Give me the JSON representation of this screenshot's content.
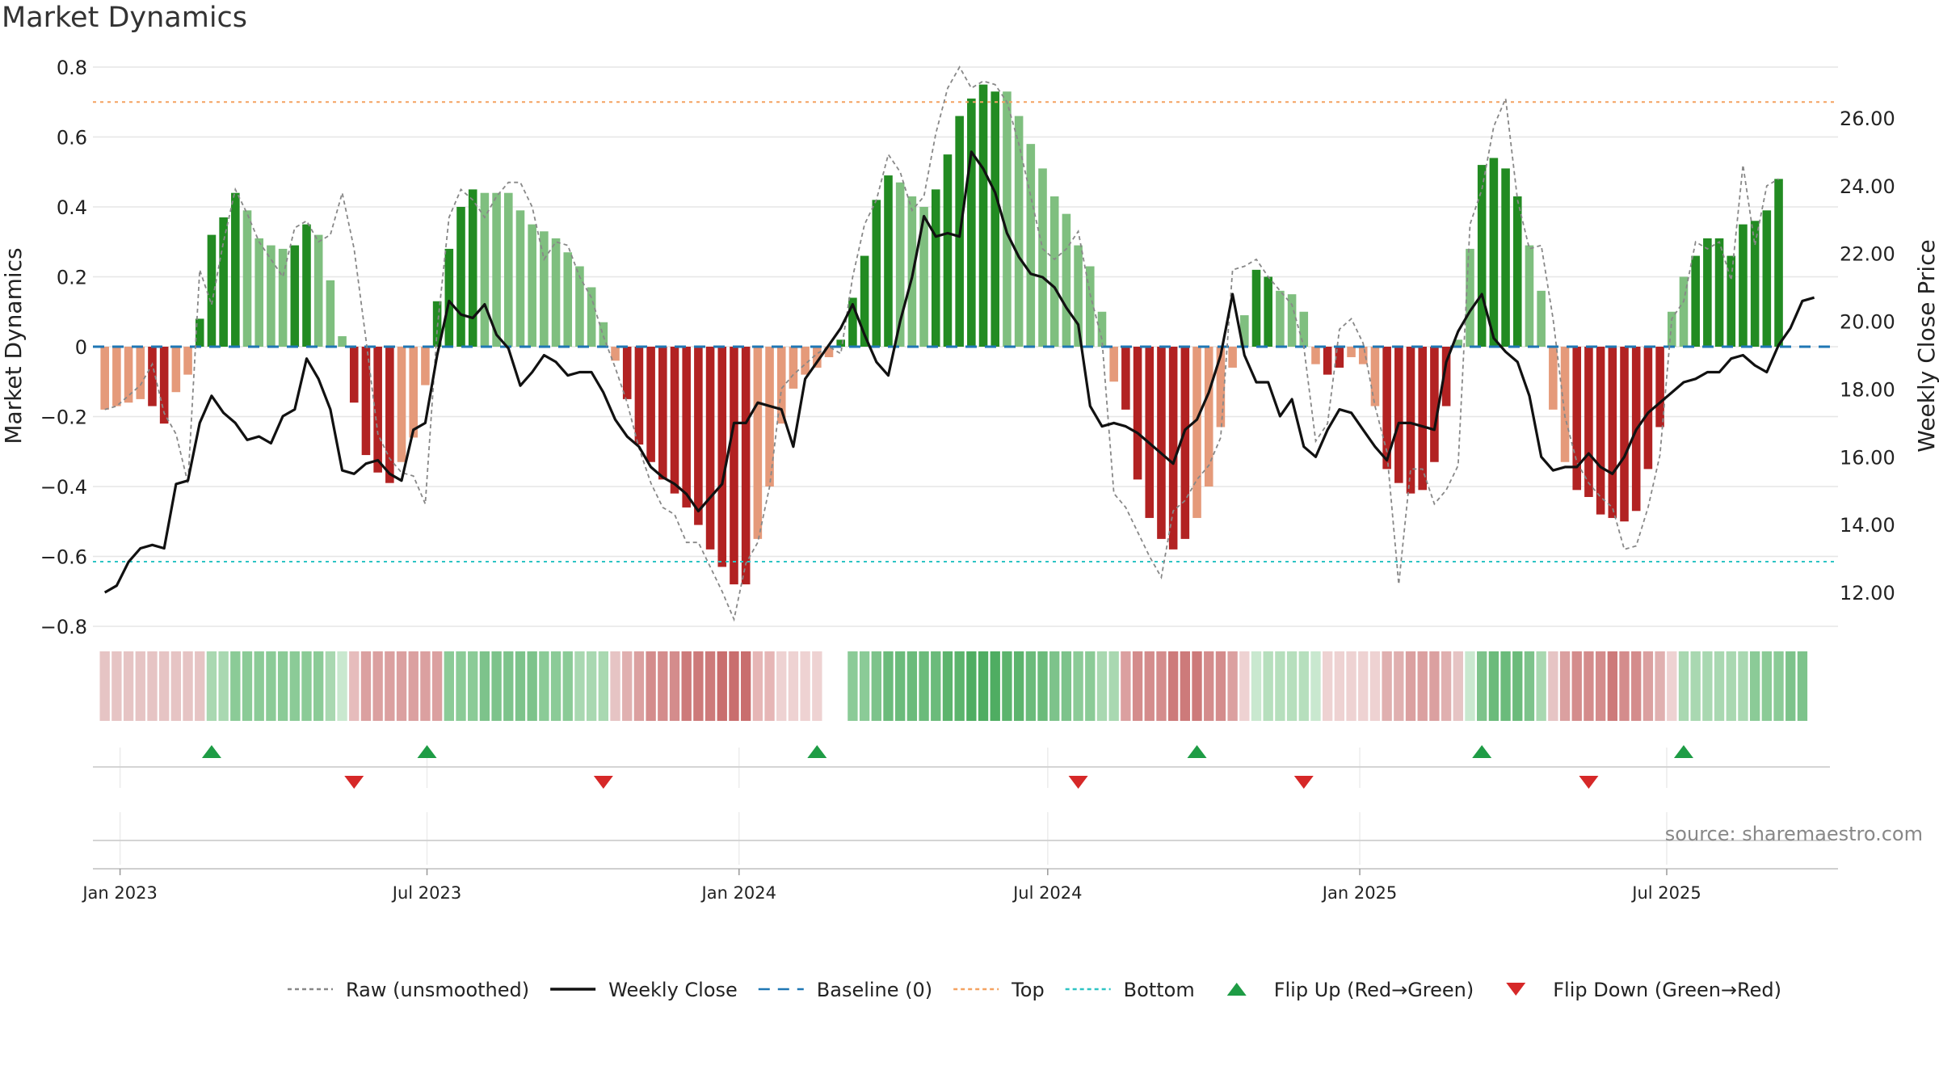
{
  "title": "Market Dynamics",
  "source": "source: sharemaestro.com",
  "chart_data": {
    "type": "bar",
    "title": "Market Dynamics",
    "ylabel_left": "Market Dynamics",
    "ylabel_right": "Weekly Close Price",
    "ylim_left": [
      -0.8,
      0.8
    ],
    "ylim_right": [
      11,
      27.5
    ],
    "left_ticks": [
      "0.8",
      "0.6",
      "0.4",
      "0.2",
      "0",
      "−0.2",
      "−0.4",
      "−0.6",
      "−0.8"
    ],
    "left_tick_values": [
      0.8,
      0.6,
      0.4,
      0.2,
      0,
      -0.2,
      -0.4,
      -0.6,
      -0.8
    ],
    "right_ticks": [
      "26.00",
      "24.00",
      "22.00",
      "20.00",
      "18.00",
      "16.00",
      "14.00",
      "12.00"
    ],
    "right_tick_values": [
      26,
      24,
      22,
      20,
      18,
      16,
      14,
      12
    ],
    "x_date_range": [
      "2022-12-16",
      "2025-10-10"
    ],
    "x_ticks": [
      {
        "date": "2023-01-01",
        "label": "Jan 2023"
      },
      {
        "date": "2023-07-01",
        "label": "Jul 2023"
      },
      {
        "date": "2024-01-01",
        "label": "Jan 2024"
      },
      {
        "date": "2024-07-01",
        "label": "Jul 2024"
      },
      {
        "date": "2025-01-01",
        "label": "Jan 2025"
      },
      {
        "date": "2025-07-01",
        "label": "Jul 2025"
      }
    ],
    "first_week": "2022-12-23",
    "week_step_days": 7,
    "dynamics": [
      -0.18,
      -0.17,
      -0.16,
      -0.15,
      -0.17,
      -0.22,
      -0.13,
      -0.08,
      0.08,
      0.32,
      0.37,
      0.44,
      0.39,
      0.31,
      0.29,
      0.28,
      0.29,
      0.35,
      0.32,
      0.19,
      0.03,
      -0.16,
      -0.31,
      -0.36,
      -0.39,
      -0.33,
      -0.26,
      -0.11,
      0.13,
      0.28,
      0.4,
      0.45,
      0.44,
      0.44,
      0.44,
      0.39,
      0.35,
      0.33,
      0.31,
      0.27,
      0.23,
      0.17,
      0.07,
      -0.04,
      -0.15,
      -0.28,
      -0.33,
      -0.38,
      -0.42,
      -0.46,
      -0.51,
      -0.58,
      -0.63,
      -0.68,
      -0.68,
      -0.55,
      -0.4,
      -0.22,
      -0.12,
      -0.08,
      -0.06,
      -0.03,
      0.02,
      0.14,
      0.26,
      0.42,
      0.49,
      0.47,
      0.43,
      0.4,
      0.45,
      0.55,
      0.66,
      0.71,
      0.75,
      0.73,
      0.73,
      0.66,
      0.58,
      0.51,
      0.43,
      0.38,
      0.29,
      0.23,
      0.1,
      -0.1,
      -0.18,
      -0.38,
      -0.49,
      -0.55,
      -0.58,
      -0.55,
      -0.49,
      -0.4,
      -0.23,
      -0.06,
      0.09,
      0.22,
      0.2,
      0.16,
      0.15,
      0.1,
      -0.05,
      -0.08,
      -0.06,
      -0.03,
      -0.05,
      -0.17,
      -0.35,
      -0.39,
      -0.42,
      -0.41,
      -0.33,
      -0.17,
      0.02,
      0.28,
      0.52,
      0.54,
      0.51,
      0.43,
      0.29,
      0.16,
      -0.18,
      -0.33,
      -0.41,
      -0.43,
      -0.48,
      -0.49,
      -0.5,
      -0.47,
      -0.35,
      -0.23,
      0.1,
      0.2,
      0.26,
      0.31,
      0.31,
      0.26,
      0.35,
      0.36,
      0.39,
      0.48
    ],
    "bar_shade": [
      "l",
      "l",
      "l",
      "l",
      "d",
      "d",
      "l",
      "l",
      "d",
      "d",
      "d",
      "d",
      "l",
      "l",
      "l",
      "l",
      "d",
      "d",
      "l",
      "l",
      "l",
      "d",
      "d",
      "d",
      "d",
      "l",
      "l",
      "l",
      "d",
      "d",
      "d",
      "d",
      "l",
      "l",
      "l",
      "l",
      "l",
      "l",
      "l",
      "l",
      "l",
      "l",
      "l",
      "l",
      "d",
      "d",
      "d",
      "d",
      "d",
      "d",
      "d",
      "d",
      "d",
      "d",
      "d",
      "l",
      "l",
      "l",
      "l",
      "l",
      "l",
      "l",
      "d",
      "d",
      "d",
      "d",
      "d",
      "l",
      "l",
      "l",
      "d",
      "d",
      "d",
      "d",
      "d",
      "d",
      "l",
      "l",
      "l",
      "l",
      "l",
      "l",
      "l",
      "l",
      "l",
      "l",
      "d",
      "d",
      "d",
      "d",
      "d",
      "d",
      "l",
      "l",
      "l",
      "l",
      "l",
      "d",
      "d",
      "l",
      "l",
      "l",
      "l",
      "d",
      "d",
      "l",
      "l",
      "l",
      "d",
      "d",
      "d",
      "d",
      "d",
      "d",
      "l",
      "l",
      "d",
      "d",
      "d",
      "d",
      "l",
      "l",
      "l",
      "l",
      "d",
      "d",
      "d",
      "d",
      "d",
      "d",
      "d",
      "d",
      "l",
      "l",
      "d",
      "d",
      "d",
      "d",
      "d",
      "d",
      "d",
      "d",
      "d",
      "d",
      "d"
    ],
    "raw": [
      -0.18,
      -0.17,
      -0.14,
      -0.11,
      -0.05,
      -0.19,
      -0.25,
      -0.39,
      0.22,
      0.12,
      0.3,
      0.45,
      0.38,
      0.3,
      0.25,
      0.2,
      0.34,
      0.36,
      0.3,
      0.32,
      0.44,
      0.28,
      0.02,
      -0.25,
      -0.32,
      -0.36,
      -0.37,
      -0.45,
      0.05,
      0.37,
      0.45,
      0.42,
      0.37,
      0.43,
      0.47,
      0.47,
      0.4,
      0.25,
      0.3,
      0.29,
      0.2,
      0.14,
      0.03,
      -0.06,
      -0.16,
      -0.29,
      -0.39,
      -0.46,
      -0.48,
      -0.56,
      -0.56,
      -0.63,
      -0.7,
      -0.78,
      -0.62,
      -0.56,
      -0.4,
      -0.12,
      -0.08,
      -0.05,
      -0.02,
      0.0,
      -0.02,
      0.2,
      0.35,
      0.42,
      0.55,
      0.5,
      0.39,
      0.43,
      0.61,
      0.74,
      0.8,
      0.74,
      0.76,
      0.75,
      0.7,
      0.58,
      0.43,
      0.28,
      0.25,
      0.28,
      0.33,
      0.15,
      0.02,
      -0.42,
      -0.46,
      -0.53,
      -0.6,
      -0.66,
      -0.47,
      -0.44,
      -0.38,
      -0.34,
      -0.26,
      0.22,
      0.23,
      0.25,
      0.2,
      0.16,
      0.12,
      0.0,
      -0.27,
      -0.22,
      0.05,
      0.08,
      0.01,
      -0.17,
      -0.3,
      -0.68,
      -0.35,
      -0.35,
      -0.45,
      -0.41,
      -0.34,
      0.35,
      0.45,
      0.63,
      0.71,
      0.42,
      0.28,
      0.29,
      0.08,
      -0.2,
      -0.33,
      -0.39,
      -0.43,
      -0.46,
      -0.58,
      -0.57,
      -0.46,
      -0.31,
      0.08,
      0.13,
      0.3,
      0.28,
      0.3,
      0.19,
      0.52,
      0.29,
      0.46,
      0.48
    ],
    "close": [
      12.0,
      12.2,
      12.9,
      13.3,
      13.4,
      13.3,
      15.2,
      15.3,
      17.0,
      17.8,
      17.3,
      17.0,
      16.5,
      16.6,
      16.4,
      17.2,
      17.4,
      18.9,
      18.3,
      17.4,
      15.6,
      15.5,
      15.8,
      15.9,
      15.5,
      15.3,
      16.8,
      17.0,
      19.0,
      20.6,
      20.2,
      20.1,
      20.5,
      19.6,
      19.2,
      18.1,
      18.5,
      19.0,
      18.8,
      18.4,
      18.5,
      18.5,
      17.9,
      17.1,
      16.6,
      16.3,
      15.7,
      15.4,
      15.2,
      14.9,
      14.4,
      14.8,
      15.2,
      17.0,
      17.0,
      17.6,
      17.5,
      17.4,
      16.3,
      18.3,
      18.8,
      19.3,
      19.8,
      20.5,
      19.6,
      18.8,
      18.4,
      20.0,
      21.3,
      23.1,
      22.5,
      22.6,
      22.5,
      25.0,
      24.5,
      23.8,
      22.6,
      21.9,
      21.4,
      21.3,
      21.0,
      20.4,
      19.9,
      17.5,
      16.9,
      17.0,
      16.9,
      16.7,
      16.4,
      16.1,
      15.8,
      16.8,
      17.1,
      17.9,
      19.0,
      20.8,
      19.0,
      18.2,
      18.2,
      17.2,
      17.7,
      16.3,
      16.0,
      16.8,
      17.4,
      17.3,
      16.8,
      16.3,
      15.9,
      17.0,
      17.0,
      16.9,
      16.8,
      18.8,
      19.7,
      20.3,
      20.8,
      19.5,
      19.1,
      18.8,
      17.8,
      16.0,
      15.6,
      15.7,
      15.7,
      16.1,
      15.7,
      15.5,
      16.0,
      16.8,
      17.3,
      17.6,
      17.9,
      18.2,
      18.3,
      18.5,
      18.5,
      18.9,
      19.0,
      18.7,
      18.5,
      19.3,
      19.8,
      20.6,
      20.7
    ],
    "strip_colors": [
      "#e6c4c4",
      "#e6c4c4",
      "#e6c4c4",
      "#e6c4c4",
      "#e6c4c4",
      "#e6c4c4",
      "#e6c4c4",
      "#e6c4c4",
      "#e6c4c4",
      "#a9d8b1",
      "#a9d8b1",
      "#8bcb97",
      "#8bcb97",
      "#8bcb97",
      "#8bcb97",
      "#8bcb97",
      "#8bcb97",
      "#8bcb97",
      "#8bcb97",
      "#a9d8b1",
      "#c9e8cf",
      "#e6bcbc",
      "#dba0a0",
      "#dba0a0",
      "#dba0a0",
      "#dba0a0",
      "#dba0a0",
      "#dba0a0",
      "#dba0a0",
      "#8bcb97",
      "#8bcb97",
      "#8bcb97",
      "#7dc38b",
      "#7dc38b",
      "#7dc38b",
      "#7dc38b",
      "#7dc38b",
      "#8bcb97",
      "#8bcb97",
      "#8bcb97",
      "#a9d8b1",
      "#a9d8b1",
      "#a9d8b1",
      "#e6c4c4",
      "#e0b0b0",
      "#dba0a0",
      "#d48c8c",
      "#d48c8c",
      "#d48c8c",
      "#cd7a7a",
      "#cd7a7a",
      "#cd7a7a",
      "#c96e6e",
      "#c96e6e",
      "#c96e6e",
      "#e6b6b6",
      "#e6b6b6",
      "#eed2d2",
      "#eed2d2",
      "#eed2d2",
      "#eed2d2",
      "#ffffff",
      "#ffffff",
      "#8bcb97",
      "#8bcb97",
      "#7dc38b",
      "#6bbb7b",
      "#6bbb7b",
      "#6bbb7b",
      "#6bbb7b",
      "#6bbb7b",
      "#5cb46d",
      "#5cb46d",
      "#4fad62",
      "#4fad62",
      "#4fad62",
      "#5cb46d",
      "#5cb46d",
      "#6bbb7b",
      "#6bbb7b",
      "#7dc38b",
      "#7dc38b",
      "#8bcb97",
      "#8bcb97",
      "#a9d8b1",
      "#a9d8b1",
      "#dba0a0",
      "#d48c8c",
      "#d48c8c",
      "#d48c8c",
      "#cd7a7a",
      "#cd7a7a",
      "#cd7a7a",
      "#d48c8c",
      "#d48c8c",
      "#dba0a0",
      "#eed2d2",
      "#c9e8cf",
      "#b6dfbd",
      "#b6dfbd",
      "#b6dfbd",
      "#b6dfbd",
      "#c9e8cf",
      "#eed2d2",
      "#eed2d2",
      "#eed2d2",
      "#eed2d2",
      "#eed2d2",
      "#e0b0b0",
      "#e0b0b0",
      "#dba0a0",
      "#dba0a0",
      "#dba0a0",
      "#e0b0b0",
      "#e6c4c4",
      "#c9e8cf",
      "#7dc38b",
      "#6bbb7b",
      "#6bbb7b",
      "#6bbb7b",
      "#7dc38b",
      "#a9d8b1",
      "#e6c4c4",
      "#dba0a0",
      "#d48c8c",
      "#d48c8c",
      "#d48c8c",
      "#cd7a7a",
      "#d48c8c",
      "#d48c8c",
      "#dba0a0",
      "#e0b0b0",
      "#eed2d2",
      "#a9d8b1",
      "#a9d8b1",
      "#a9d8b1",
      "#a9d8b1",
      "#a9d8b1",
      "#a9d8b1",
      "#8bcb97",
      "#8bcb97",
      "#8bcb97",
      "#7dc38b",
      "#7dc38b"
    ],
    "flip_up": [
      "2023-02-24",
      "2023-07-01",
      "2024-02-16",
      "2024-09-27",
      "2025-03-14",
      "2025-07-11"
    ],
    "flip_down": [
      "2023-05-19",
      "2023-10-13",
      "2024-07-19",
      "2024-11-29",
      "2025-05-16"
    ],
    "top_line": 0.7,
    "bottom_line": -0.615,
    "baseline": 0,
    "legend_placement": "bottom-center",
    "grid": true
  },
  "legend": [
    {
      "label": "Raw (unsmoothed)",
      "kind": "dotted",
      "color": "#888888"
    },
    {
      "label": "Weekly Close",
      "kind": "solid",
      "color": "#111111"
    },
    {
      "label": "Baseline (0)",
      "kind": "dashed",
      "color": "#1f77b4"
    },
    {
      "label": "Top",
      "kind": "dotted",
      "color": "#f4a261"
    },
    {
      "label": "Bottom",
      "kind": "dotted",
      "color": "#2ec4c4"
    },
    {
      "label": "Flip Up (Red→Green)",
      "kind": "tri-up",
      "color": "#1e9c45"
    },
    {
      "label": "Flip Down (Green→Red)",
      "kind": "tri-down",
      "color": "#d62828"
    }
  ],
  "colors": {
    "green_dark": "#228b22",
    "green_light": "#7fbf7f",
    "red_dark": "#b22222",
    "red_light": "#e59a7a",
    "flip_up": "#1e9c45",
    "flip_down": "#d62828",
    "top": "#f4a261",
    "bottom": "#2ec4c4",
    "baseline": "#1f77b4"
  }
}
